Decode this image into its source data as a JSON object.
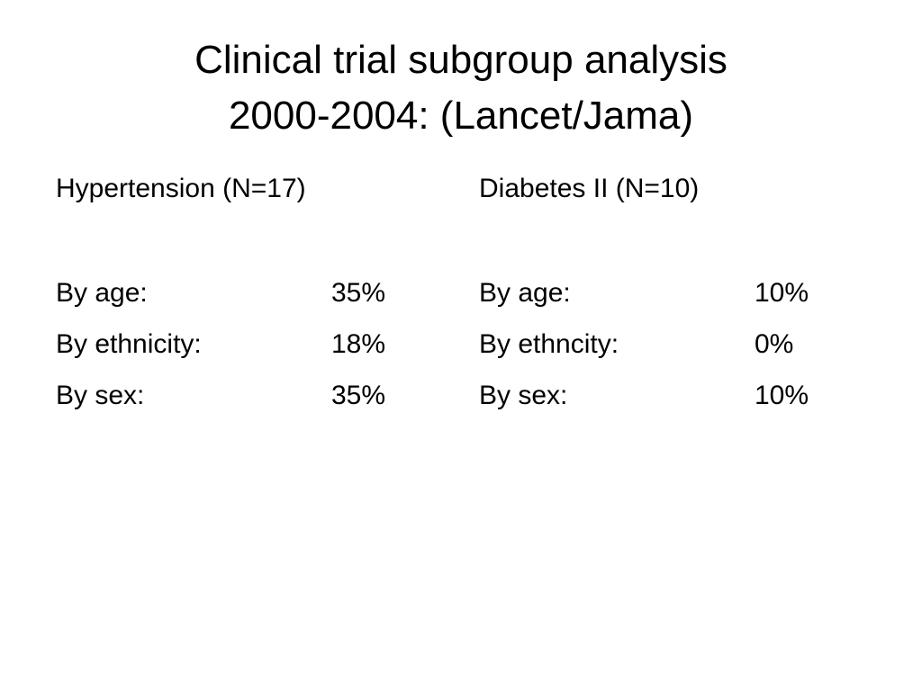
{
  "slide": {
    "title_line1": "Clinical trial subgroup analysis",
    "title_line2": "2000-2004: (Lancet/Jama)"
  },
  "columns": [
    {
      "heading": "Hypertension (N=17)",
      "rows": [
        {
          "label": "By age:",
          "value": "35%"
        },
        {
          "label": "By ethnicity:",
          "value": "18%"
        },
        {
          "label": "By sex:",
          "value": "35%"
        }
      ]
    },
    {
      "heading": "Diabetes II (N=10)",
      "rows": [
        {
          "label": "By age:",
          "value": "10%"
        },
        {
          "label": "By ethncity:",
          "value": "0%"
        },
        {
          "label": "By sex:",
          "value": "10%"
        }
      ]
    }
  ]
}
